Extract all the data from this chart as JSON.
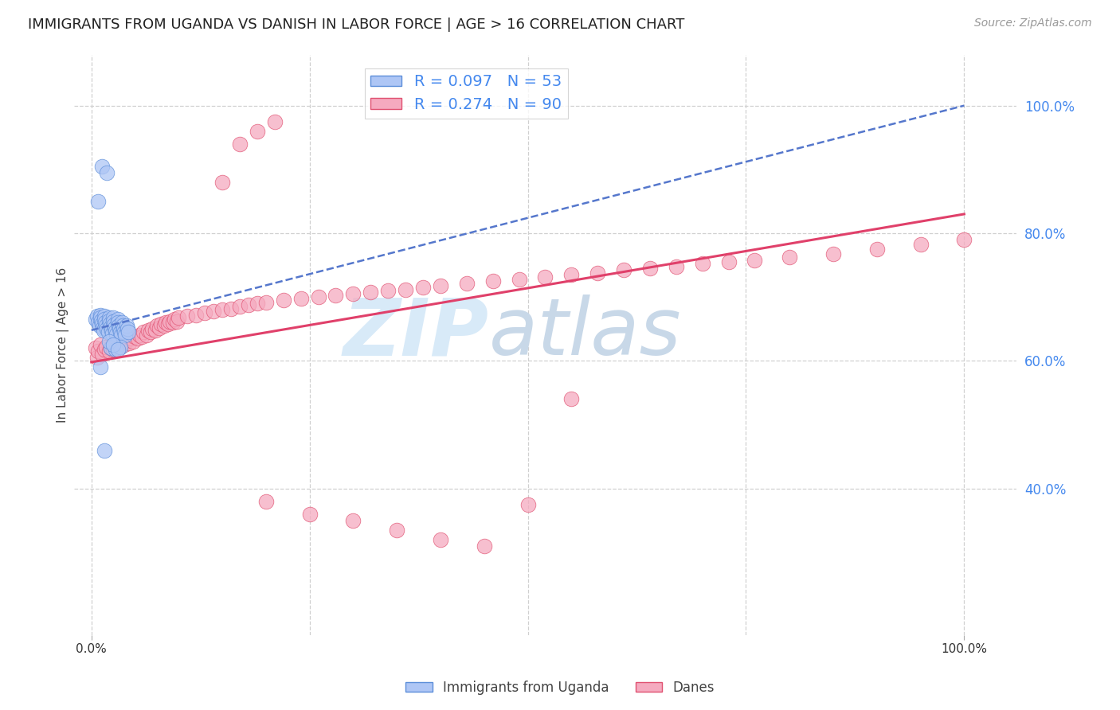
{
  "title": "IMMIGRANTS FROM UGANDA VS DANISH IN LABOR FORCE | AGE > 16 CORRELATION CHART",
  "source": "Source: ZipAtlas.com",
  "ylabel": "In Labor Force | Age > 16",
  "right_ytick_labels": [
    "40.0%",
    "60.0%",
    "80.0%",
    "100.0%"
  ],
  "right_ytick_values": [
    0.4,
    0.6,
    0.8,
    1.0
  ],
  "xlim": [
    -0.02,
    1.06
  ],
  "ylim": [
    0.17,
    1.08
  ],
  "uganda_color": "#aec6f5",
  "uganda_edge_color": "#5b8dd9",
  "danes_color": "#f5aabf",
  "danes_edge_color": "#e05070",
  "trendline_uganda_color": "#5577cc",
  "trendline_danes_color": "#e0406a",
  "grid_color": "#d0d0d0",
  "background_color": "#ffffff",
  "watermark_zip": "ZIP",
  "watermark_atlas": "atlas",
  "watermark_color": "#d8eaf8",
  "watermark_atlas_color": "#c8d8e8",
  "title_fontsize": 13,
  "axis_label_fontsize": 11,
  "tick_fontsize": 11,
  "legend_fontsize": 13,
  "source_fontsize": 10,
  "uganda_x": [
    0.005,
    0.007,
    0.008,
    0.009,
    0.01,
    0.01,
    0.011,
    0.012,
    0.013,
    0.014,
    0.015,
    0.015,
    0.016,
    0.017,
    0.018,
    0.019,
    0.02,
    0.02,
    0.021,
    0.022,
    0.023,
    0.024,
    0.025,
    0.025,
    0.026,
    0.027,
    0.028,
    0.029,
    0.03,
    0.03,
    0.031,
    0.032,
    0.033,
    0.034,
    0.035,
    0.036,
    0.037,
    0.038,
    0.039,
    0.04,
    0.041,
    0.042,
    0.008,
    0.012,
    0.018,
    0.022,
    0.028,
    0.033,
    0.01,
    0.015,
    0.02,
    0.025,
    0.03
  ],
  "uganda_y": [
    0.665,
    0.67,
    0.66,
    0.655,
    0.672,
    0.668,
    0.663,
    0.658,
    0.652,
    0.648,
    0.67,
    0.665,
    0.66,
    0.655,
    0.65,
    0.645,
    0.668,
    0.663,
    0.658,
    0.653,
    0.648,
    0.643,
    0.668,
    0.662,
    0.657,
    0.652,
    0.647,
    0.642,
    0.665,
    0.66,
    0.655,
    0.65,
    0.645,
    0.64,
    0.66,
    0.655,
    0.65,
    0.645,
    0.64,
    0.655,
    0.65,
    0.645,
    0.85,
    0.905,
    0.895,
    0.62,
    0.618,
    0.622,
    0.59,
    0.46,
    0.63,
    0.625,
    0.618
  ],
  "danes_x": [
    0.005,
    0.007,
    0.008,
    0.01,
    0.012,
    0.015,
    0.017,
    0.02,
    0.022,
    0.025,
    0.028,
    0.03,
    0.033,
    0.035,
    0.038,
    0.04,
    0.043,
    0.045,
    0.048,
    0.05,
    0.053,
    0.055,
    0.058,
    0.06,
    0.063,
    0.065,
    0.068,
    0.07,
    0.073,
    0.075,
    0.078,
    0.08,
    0.083,
    0.085,
    0.088,
    0.09,
    0.093,
    0.095,
    0.098,
    0.1,
    0.11,
    0.12,
    0.13,
    0.14,
    0.15,
    0.16,
    0.17,
    0.18,
    0.19,
    0.2,
    0.22,
    0.24,
    0.26,
    0.28,
    0.3,
    0.32,
    0.34,
    0.36,
    0.38,
    0.4,
    0.43,
    0.46,
    0.49,
    0.52,
    0.55,
    0.58,
    0.61,
    0.64,
    0.67,
    0.7,
    0.73,
    0.76,
    0.8,
    0.85,
    0.9,
    0.95,
    1.0,
    0.2,
    0.25,
    0.3,
    0.35,
    0.4,
    0.45,
    0.5,
    0.55,
    0.15,
    0.17,
    0.19,
    0.21
  ],
  "danes_y": [
    0.62,
    0.605,
    0.615,
    0.625,
    0.61,
    0.618,
    0.622,
    0.615,
    0.62,
    0.618,
    0.625,
    0.63,
    0.622,
    0.628,
    0.625,
    0.632,
    0.628,
    0.635,
    0.63,
    0.638,
    0.635,
    0.64,
    0.638,
    0.645,
    0.64,
    0.648,
    0.645,
    0.65,
    0.648,
    0.655,
    0.652,
    0.658,
    0.655,
    0.66,
    0.658,
    0.662,
    0.66,
    0.665,
    0.662,
    0.668,
    0.67,
    0.672,
    0.675,
    0.678,
    0.68,
    0.682,
    0.685,
    0.688,
    0.69,
    0.692,
    0.695,
    0.698,
    0.7,
    0.703,
    0.705,
    0.708,
    0.71,
    0.712,
    0.715,
    0.718,
    0.722,
    0.725,
    0.728,
    0.732,
    0.735,
    0.738,
    0.742,
    0.745,
    0.748,
    0.752,
    0.755,
    0.758,
    0.762,
    0.768,
    0.775,
    0.782,
    0.79,
    0.38,
    0.36,
    0.35,
    0.335,
    0.32,
    0.31,
    0.375,
    0.54,
    0.88,
    0.94,
    0.96,
    0.975
  ],
  "trendline_uganda_x0": 0.0,
  "trendline_uganda_y0": 0.648,
  "trendline_uganda_x1": 1.0,
  "trendline_uganda_y1": 1.0,
  "trendline_danes_x0": 0.0,
  "trendline_danes_y0": 0.598,
  "trendline_danes_x1": 1.0,
  "trendline_danes_y1": 0.83
}
